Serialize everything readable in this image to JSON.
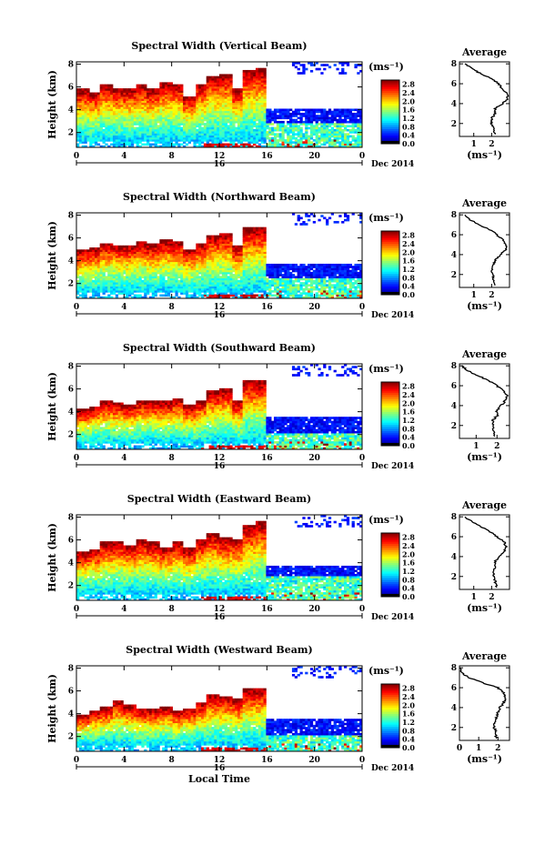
{
  "figure": {
    "xlabel": "Local Time",
    "date_label": "Dec 2014",
    "day_label": "16",
    "ylabel": "Height (km)",
    "cb_unit": "(ms⁻¹)",
    "avg_title": "Average",
    "avg_xlabel": "(ms⁻¹)"
  },
  "chart_data": [
    {
      "type": "heatmap",
      "title": "Spectral Width (Vertical Beam)",
      "xlabel": "",
      "ylabel": "Height (km)",
      "x_ticks": [
        "0",
        "4",
        "8",
        "12",
        "16",
        "20",
        "0"
      ],
      "x_range_hours": [
        0,
        24
      ],
      "y_ticks": [
        "2",
        "4",
        "6",
        "8"
      ],
      "ylim": [
        0.7,
        8.2
      ],
      "colorbar": {
        "ticks": [
          "0.0",
          "0.4",
          "0.8",
          "1.2",
          "1.6",
          "2.0",
          "2.4",
          "2.8"
        ],
        "range": [
          0,
          3.0
        ]
      },
      "cloud_tops_km": [
        5.8,
        5.6,
        6.3,
        5.9,
        5.9,
        6.2,
        5.9,
        6.4,
        6.3,
        5.2,
        6.3,
        7.0,
        7.2,
        5.9,
        7.5,
        7.6,
        0,
        0,
        0,
        0,
        0,
        0,
        0,
        0
      ],
      "cloud_bases_km": [
        0.8,
        0.9,
        0.9,
        0.9,
        0.9,
        0.9,
        0.9,
        0.9,
        1.0,
        1.0,
        1.0,
        1.1,
        1.1,
        1.1,
        1.1,
        1.2,
        0.8,
        0.8,
        0.8,
        0.8,
        0.8,
        0.8,
        0.8,
        0.8
      ],
      "late_layer_km": [
        2.8,
        4.1
      ],
      "average": {
        "title": "Average",
        "x_ticks": [
          "1",
          "2"
        ],
        "xlim": [
          0.2,
          3.0
        ],
        "y_ticks": [
          "2",
          "4",
          "6",
          "8"
        ],
        "ylim": [
          0.7,
          8.2
        ],
        "profile": [
          [
            2.2,
            0.9
          ],
          [
            2.1,
            1.5
          ],
          [
            2.0,
            2.0
          ],
          [
            2.0,
            2.5
          ],
          [
            2.2,
            3.0
          ],
          [
            2.2,
            3.5
          ],
          [
            2.6,
            4.0
          ],
          [
            2.9,
            4.5
          ],
          [
            2.9,
            5.0
          ],
          [
            2.6,
            5.5
          ],
          [
            2.4,
            6.0
          ],
          [
            2.0,
            6.5
          ],
          [
            1.4,
            7.0
          ],
          [
            0.9,
            7.5
          ],
          [
            0.5,
            8.0
          ]
        ]
      }
    },
    {
      "type": "heatmap",
      "title": "Spectral Width (Northward Beam)",
      "xlabel": "",
      "ylabel": "Height (km)",
      "x_ticks": [
        "0",
        "4",
        "8",
        "12",
        "16",
        "20",
        "0"
      ],
      "x_range_hours": [
        0,
        24
      ],
      "y_ticks": [
        "2",
        "4",
        "6",
        "8"
      ],
      "ylim": [
        0.7,
        8.2
      ],
      "colorbar": {
        "ticks": [
          "0.0",
          "0.4",
          "0.8",
          "1.2",
          "1.6",
          "2.0",
          "2.4",
          "2.8"
        ],
        "range": [
          0,
          3.0
        ]
      },
      "cloud_tops_km": [
        5.0,
        5.1,
        5.6,
        5.4,
        5.4,
        5.7,
        5.5,
        5.8,
        5.7,
        5.0,
        5.6,
        6.3,
        6.5,
        5.3,
        6.9,
        6.9,
        0,
        0,
        0,
        0,
        0,
        0,
        0,
        0
      ],
      "cloud_bases_km": [
        0.8,
        0.9,
        0.9,
        0.9,
        0.9,
        0.9,
        0.9,
        0.9,
        1.0,
        1.0,
        1.0,
        1.1,
        1.1,
        1.1,
        1.1,
        1.2,
        0.8,
        0.8,
        0.8,
        0.8,
        0.8,
        0.8,
        0.8,
        0.8
      ],
      "late_layer_km": [
        2.4,
        3.8
      ],
      "average": {
        "title": "Average",
        "x_ticks": [
          "1",
          "2"
        ],
        "xlim": [
          0.2,
          3.0
        ],
        "y_ticks": [
          "2",
          "4",
          "6",
          "8"
        ],
        "ylim": [
          0.7,
          8.2
        ],
        "profile": [
          [
            2.2,
            0.9
          ],
          [
            2.1,
            1.5
          ],
          [
            2.1,
            2.0
          ],
          [
            2.0,
            2.5
          ],
          [
            2.1,
            3.0
          ],
          [
            2.2,
            3.5
          ],
          [
            2.5,
            4.0
          ],
          [
            2.8,
            4.5
          ],
          [
            2.8,
            5.0
          ],
          [
            2.6,
            5.5
          ],
          [
            2.3,
            6.0
          ],
          [
            1.9,
            6.5
          ],
          [
            1.3,
            7.0
          ],
          [
            0.8,
            7.5
          ],
          [
            0.5,
            8.0
          ]
        ]
      }
    },
    {
      "type": "heatmap",
      "title": "Spectral Width (Southward Beam)",
      "xlabel": "",
      "ylabel": "Height (km)",
      "x_ticks": [
        "0",
        "4",
        "8",
        "12",
        "16",
        "20",
        "0"
      ],
      "x_range_hours": [
        0,
        24
      ],
      "y_ticks": [
        "2",
        "4",
        "6",
        "8"
      ],
      "ylim": [
        0.7,
        8.2
      ],
      "colorbar": {
        "ticks": [
          "0.0",
          "0.4",
          "0.8",
          "1.2",
          "1.6",
          "2.0",
          "2.4",
          "2.8"
        ],
        "range": [
          0,
          3.0
        ]
      },
      "cloud_tops_km": [
        4.2,
        4.5,
        4.9,
        4.8,
        4.6,
        5.0,
        5.0,
        4.9,
        5.2,
        4.6,
        5.0,
        5.8,
        6.0,
        5.0,
        6.8,
        6.8,
        0,
        0,
        0,
        0,
        0,
        0,
        0,
        0
      ],
      "cloud_bases_km": [
        0.8,
        0.9,
        0.9,
        0.9,
        0.9,
        0.9,
        0.9,
        0.9,
        1.0,
        1.0,
        1.0,
        1.1,
        1.1,
        1.1,
        1.1,
        1.2,
        0.8,
        0.8,
        0.8,
        0.8,
        0.8,
        0.8,
        0.8,
        0.8
      ],
      "late_layer_km": [
        2.2,
        3.5
      ],
      "average": {
        "title": "Average",
        "x_ticks": [
          "1",
          "2"
        ],
        "xlim": [
          0.2,
          2.6
        ],
        "y_ticks": [
          "2",
          "4",
          "6",
          "8"
        ],
        "ylim": [
          0.7,
          8.2
        ],
        "profile": [
          [
            1.9,
            0.9
          ],
          [
            1.8,
            1.5
          ],
          [
            1.8,
            2.0
          ],
          [
            1.8,
            2.5
          ],
          [
            2.0,
            3.0
          ],
          [
            2.0,
            3.5
          ],
          [
            2.2,
            4.0
          ],
          [
            2.4,
            4.5
          ],
          [
            2.5,
            5.0
          ],
          [
            2.3,
            5.5
          ],
          [
            2.0,
            6.0
          ],
          [
            1.6,
            6.5
          ],
          [
            1.1,
            7.0
          ],
          [
            0.6,
            7.5
          ],
          [
            0.3,
            8.0
          ]
        ]
      }
    },
    {
      "type": "heatmap",
      "title": "Spectral Width (Eastward Beam)",
      "xlabel": "",
      "ylabel": "Height (km)",
      "x_ticks": [
        "0",
        "4",
        "8",
        "12",
        "16",
        "20",
        "0"
      ],
      "x_range_hours": [
        0,
        24
      ],
      "y_ticks": [
        "2",
        "4",
        "6",
        "8"
      ],
      "ylim": [
        0.7,
        8.2
      ],
      "colorbar": {
        "ticks": [
          "0.0",
          "0.4",
          "0.8",
          "1.2",
          "1.6",
          "2.0",
          "2.4",
          "2.8"
        ],
        "range": [
          0,
          3.0
        ]
      },
      "cloud_tops_km": [
        5.0,
        5.2,
        5.8,
        5.9,
        5.6,
        6.0,
        5.8,
        5.4,
        5.9,
        5.3,
        6.0,
        6.6,
        6.2,
        6.1,
        7.3,
        7.6,
        0,
        0,
        0,
        0,
        0,
        0,
        0,
        0
      ],
      "cloud_bases_km": [
        0.8,
        0.9,
        0.9,
        0.9,
        0.9,
        0.9,
        0.9,
        0.9,
        1.0,
        1.0,
        1.0,
        1.1,
        1.1,
        1.1,
        1.1,
        1.2,
        0.8,
        0.8,
        0.8,
        0.8,
        0.8,
        0.8,
        0.8,
        0.8
      ],
      "late_layer_km": [
        2.8,
        3.8
      ],
      "average": {
        "title": "Average",
        "x_ticks": [
          "1",
          "2"
        ],
        "xlim": [
          0.2,
          3.0
        ],
        "y_ticks": [
          "2",
          "4",
          "6",
          "8"
        ],
        "ylim": [
          0.7,
          8.2
        ],
        "profile": [
          [
            2.3,
            0.9
          ],
          [
            2.2,
            1.5
          ],
          [
            2.1,
            2.0
          ],
          [
            2.1,
            2.5
          ],
          [
            2.2,
            3.0
          ],
          [
            2.2,
            3.5
          ],
          [
            2.4,
            4.0
          ],
          [
            2.7,
            4.5
          ],
          [
            2.8,
            5.0
          ],
          [
            2.7,
            5.5
          ],
          [
            2.3,
            6.0
          ],
          [
            1.9,
            6.5
          ],
          [
            1.4,
            7.0
          ],
          [
            0.9,
            7.5
          ],
          [
            0.5,
            8.0
          ]
        ]
      }
    },
    {
      "type": "heatmap",
      "title": "Spectral Width (Westward Beam)",
      "xlabel": "Local Time",
      "ylabel": "Height (km)",
      "x_ticks": [
        "0",
        "4",
        "8",
        "12",
        "16",
        "20",
        "0"
      ],
      "x_range_hours": [
        0,
        24
      ],
      "y_ticks": [
        "2",
        "4",
        "6",
        "8"
      ],
      "ylim": [
        0.7,
        8.2
      ],
      "colorbar": {
        "ticks": [
          "0.0",
          "0.4",
          "0.8",
          "1.2",
          "1.6",
          "2.0",
          "2.4",
          "2.8"
        ],
        "range": [
          0,
          3.0
        ]
      },
      "cloud_tops_km": [
        4.0,
        4.3,
        4.6,
        5.2,
        4.8,
        4.5,
        4.4,
        4.6,
        4.3,
        4.5,
        5.0,
        5.7,
        5.6,
        5.3,
        6.2,
        6.2,
        0,
        0,
        0,
        0,
        0,
        0,
        0,
        0
      ],
      "cloud_bases_km": [
        0.8,
        0.9,
        0.9,
        0.9,
        0.9,
        0.9,
        0.9,
        0.9,
        1.0,
        1.0,
        1.0,
        1.1,
        1.1,
        1.1,
        1.1,
        1.2,
        0.8,
        0.8,
        0.8,
        0.8,
        0.8,
        0.8,
        0.8,
        0.8
      ],
      "late_layer_km": [
        2.2,
        3.5
      ],
      "average": {
        "title": "Average",
        "x_ticks": [
          "0",
          "1",
          "2"
        ],
        "xlim": [
          0.0,
          2.6
        ],
        "y_ticks": [
          "2",
          "4",
          "6",
          "8"
        ],
        "ylim": [
          0.7,
          8.2
        ],
        "profile": [
          [
            1.9,
            0.9
          ],
          [
            1.9,
            1.5
          ],
          [
            1.8,
            2.0
          ],
          [
            1.8,
            2.5
          ],
          [
            1.9,
            3.0
          ],
          [
            2.0,
            3.5
          ],
          [
            2.1,
            4.0
          ],
          [
            2.3,
            4.5
          ],
          [
            2.4,
            5.0
          ],
          [
            2.3,
            5.5
          ],
          [
            2.0,
            6.0
          ],
          [
            1.2,
            6.5
          ],
          [
            0.5,
            7.0
          ],
          [
            0.1,
            7.5
          ],
          [
            0.0,
            8.0
          ]
        ]
      }
    }
  ]
}
